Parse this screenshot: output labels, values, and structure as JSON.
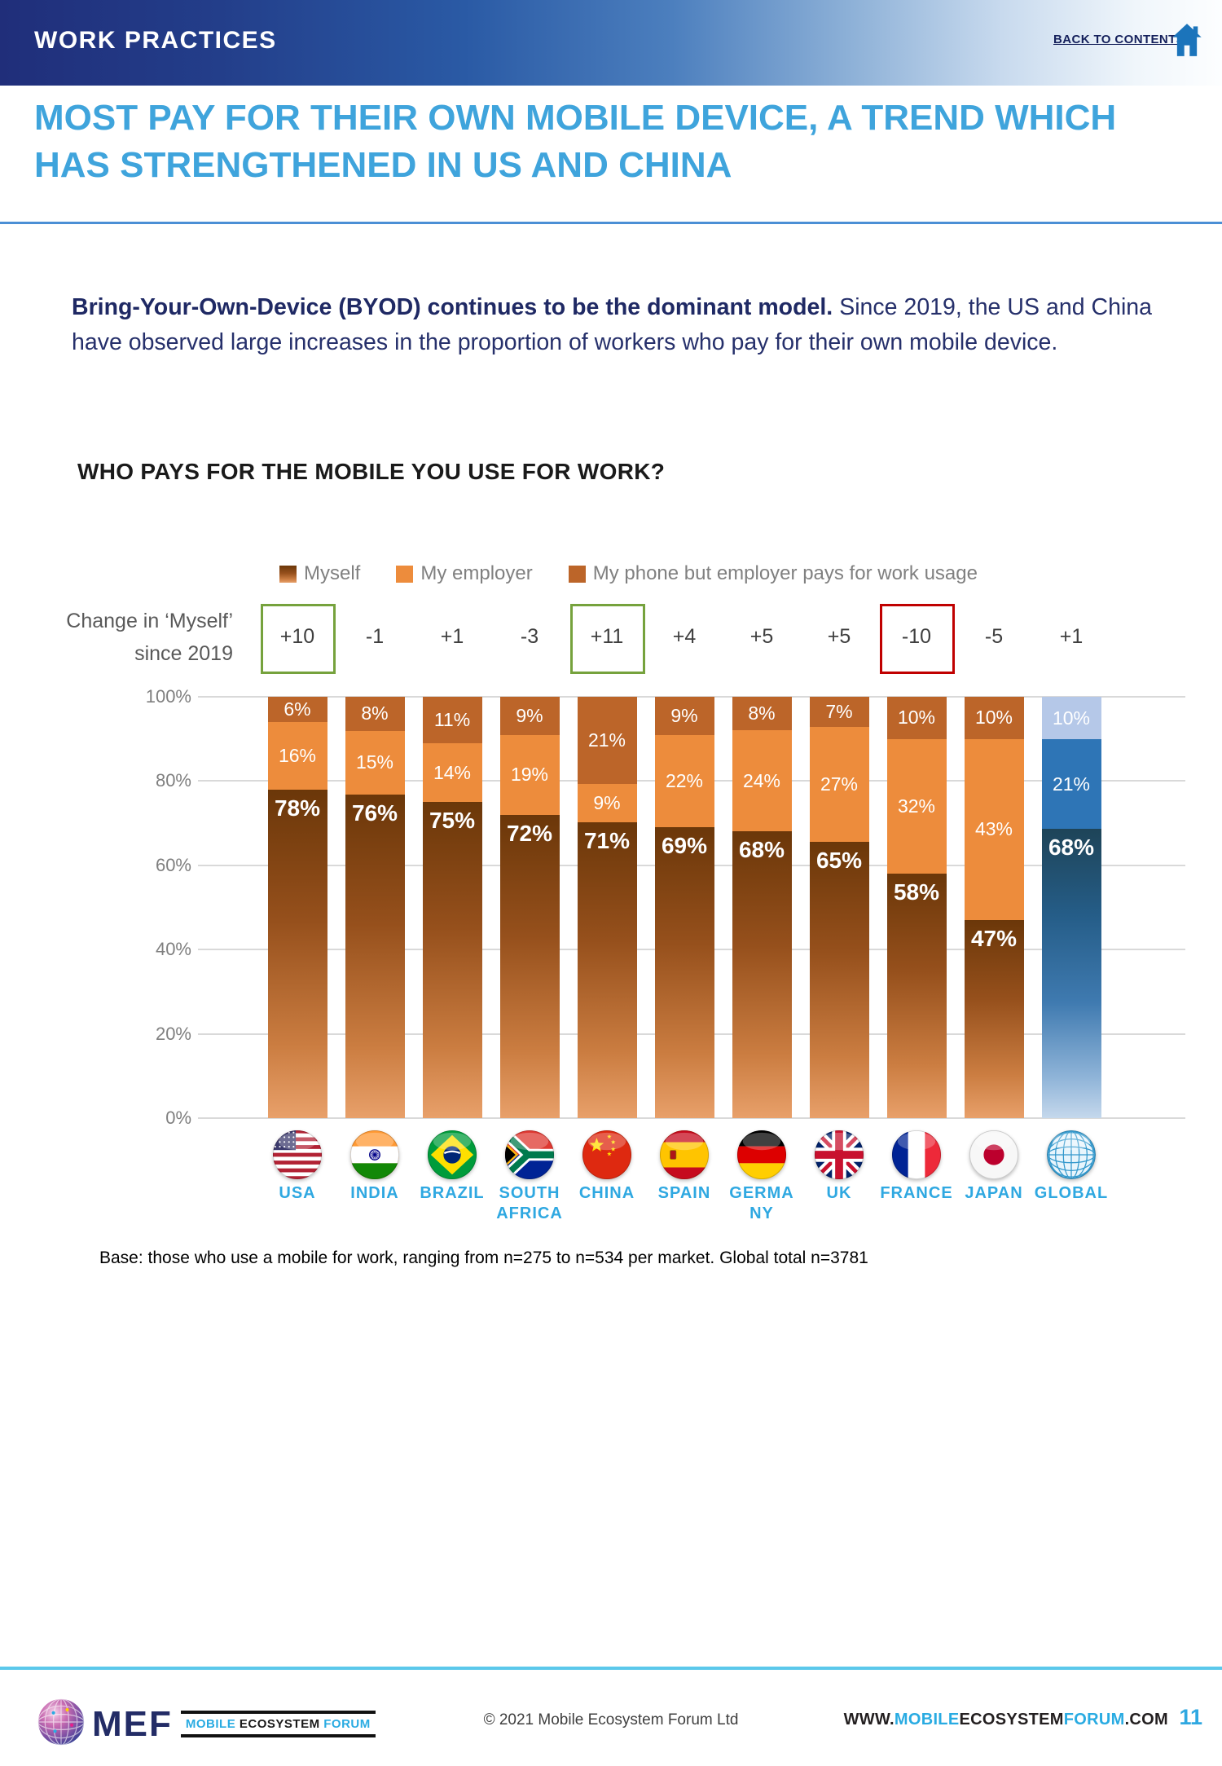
{
  "header": {
    "section": "WORK PRACTICES",
    "back_link": "BACK TO CONTENTS"
  },
  "title": "MOST PAY FOR THEIR OWN MOBILE DEVICE, A TREND WHICH HAS STRENGTHENED IN US AND CHINA",
  "intro": {
    "lead": "Bring-Your-Own-Device (BYOD) continues to be the dominant model.",
    "rest": " Since 2019, the US and China have observed large increases in the proportion of workers who pay for their own mobile device."
  },
  "chart_data": {
    "type": "bar",
    "stacked": true,
    "title": "WHO PAYS FOR THE MOBILE YOU USE FOR WORK?",
    "legend": [
      "Myself",
      "My employer",
      "My phone but employer pays for work usage"
    ],
    "change_label_line1": "Change in ‘Myself’",
    "change_label_line2": "since 2019",
    "categories": [
      "USA",
      "INDIA",
      "BRAZIL",
      "SOUTH AFRICA",
      "CHINA",
      "SPAIN",
      "GERMANY",
      "UK",
      "FRANCE",
      "JAPAN",
      "GLOBAL"
    ],
    "flags": [
      "flag-usa",
      "flag-india",
      "flag-brazil",
      "flag-south-africa",
      "flag-china",
      "flag-spain",
      "flag-germany",
      "flag-uk",
      "flag-france",
      "flag-japan",
      "globe-global"
    ],
    "change_since_2019": [
      "+10",
      "-1",
      "+1",
      "-3",
      "+11",
      "+4",
      "+5",
      "+5",
      "-10",
      "-5",
      "+1"
    ],
    "change_highlight": [
      "green",
      null,
      null,
      null,
      "green",
      null,
      null,
      null,
      "red",
      null,
      null
    ],
    "series": [
      {
        "name": "Myself",
        "values": [
          78,
          76,
          75,
          72,
          71,
          69,
          68,
          65,
          58,
          47,
          68
        ]
      },
      {
        "name": "My employer",
        "values": [
          16,
          15,
          14,
          19,
          9,
          22,
          24,
          27,
          32,
          43,
          21
        ]
      },
      {
        "name": "My phone but employer pays for work usage",
        "values": [
          6,
          8,
          11,
          9,
          21,
          9,
          8,
          7,
          10,
          10,
          10
        ]
      }
    ],
    "ylim": [
      0,
      100
    ],
    "yticks": [
      "100%",
      "80%",
      "60%",
      "40%",
      "20%",
      "0%"
    ],
    "grid": "horizontal",
    "legend_position": "top",
    "base_note": "Base: those who use a mobile for work, ranging from n=275 to n=534 per market. Global total n=3781"
  },
  "colors": {
    "accent_blue": "#3FA4DC",
    "header_navy": "#202E7A",
    "link_blue": "#29ABE2",
    "myself_gradient_top": "#6B3709",
    "myself_gradient_bottom": "#E8A06A",
    "employer_orange": "#ED8C3C",
    "phone_brown": "#BC6529",
    "global_myself_top": "#1E4458",
    "global_myself_bottom": "#C5D8EC",
    "global_employer_blue": "#2E75B6",
    "global_phone_light_blue": "#B5C8E8",
    "highlight_green": "#76A23D",
    "highlight_red": "#C00000"
  },
  "footer": {
    "logo_text": "MEF",
    "logo_badge": [
      "MOBILE",
      "ECOSYSTEM",
      "FORUM"
    ],
    "copyright": "© 2021 Mobile Ecosystem Forum Ltd",
    "website_parts": [
      "WWW.",
      "MOBILE",
      "ECOSYSTEM",
      "FORUM",
      ".COM"
    ],
    "page": "11"
  }
}
